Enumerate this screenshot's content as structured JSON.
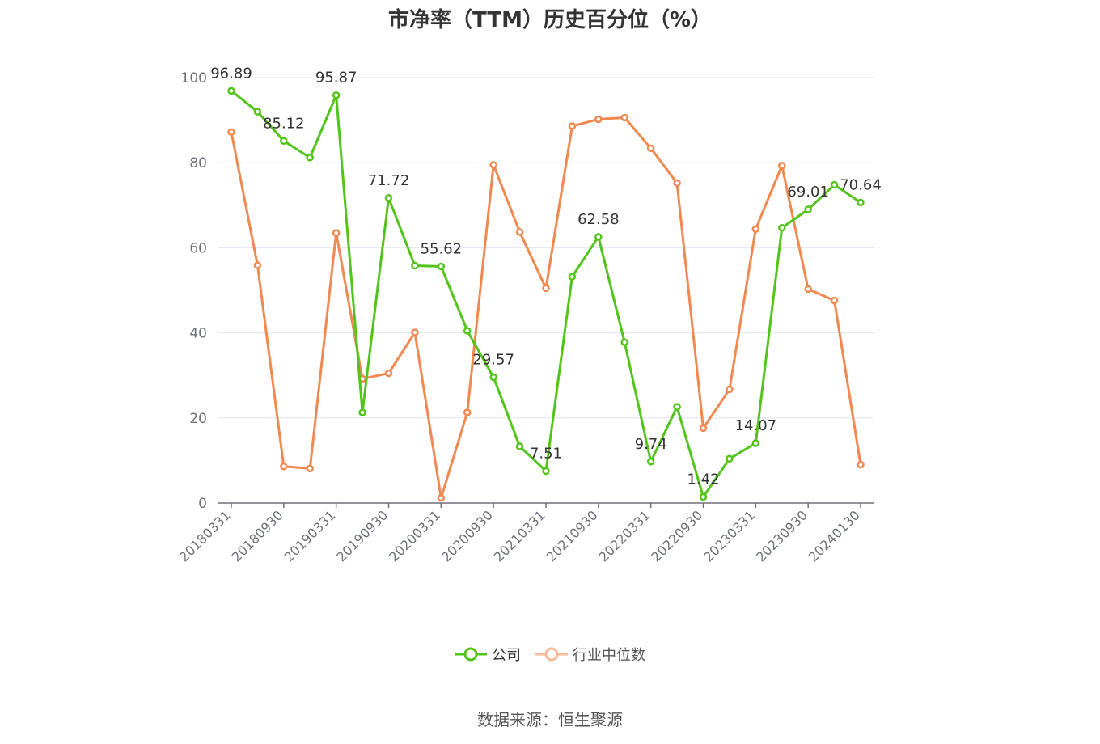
{
  "chart_data": {
    "type": "line",
    "title": "市净率（TTM）历史百分位（%）",
    "xlabel": "",
    "ylabel": "",
    "ylim": [
      0,
      100
    ],
    "yticks": [
      0,
      20,
      40,
      60,
      80,
      100
    ],
    "grid": true,
    "legend_position": "bottom",
    "x": [
      "20180331",
      "20180630",
      "20180930",
      "20181231",
      "20190331",
      "20190630",
      "20190930",
      "20191231",
      "20200331",
      "20200630",
      "20200930",
      "20201231",
      "20210331",
      "20210630",
      "20210930",
      "20211231",
      "20220331",
      "20220630",
      "20220930",
      "20221231",
      "20230331",
      "20230630",
      "20230930",
      "20231231",
      "20240130"
    ],
    "xtick_labels": [
      "20180331",
      "20180930",
      "20190331",
      "20190930",
      "20200331",
      "20200930",
      "20210331",
      "20210930",
      "20220331",
      "20220930",
      "20230331",
      "20230930",
      "20240130"
    ],
    "series": [
      {
        "name": "公司",
        "color": "#52c41a",
        "values": [
          96.89,
          92.0,
          85.12,
          81.2,
          95.87,
          21.3,
          71.72,
          55.8,
          55.62,
          40.5,
          29.57,
          13.3,
          7.51,
          53.2,
          62.58,
          37.8,
          9.74,
          22.6,
          1.42,
          10.4,
          14.07,
          64.7,
          69.01,
          74.8,
          70.64
        ],
        "data_labels": {
          "0": "96.89",
          "2": "85.12",
          "4": "95.87",
          "6": "71.72",
          "8": "55.62",
          "10": "29.57",
          "12": "7.51",
          "14": "62.58",
          "16": "9.74",
          "18": "1.42",
          "20": "14.07",
          "22": "69.01",
          "24": "70.64"
        }
      },
      {
        "name": "行业中位数",
        "color": "#f0884f",
        "values": [
          87.2,
          55.9,
          8.6,
          8.1,
          63.5,
          29.2,
          30.5,
          40.1,
          1.2,
          21.3,
          79.5,
          63.7,
          50.5,
          88.6,
          90.2,
          90.6,
          83.4,
          75.2,
          17.6,
          26.7,
          64.4,
          79.3,
          50.3,
          47.6,
          9.0
        ]
      }
    ]
  },
  "legend": {
    "company": "公司",
    "industry": "行业中位数"
  },
  "source": "数据来源：恒生聚源"
}
